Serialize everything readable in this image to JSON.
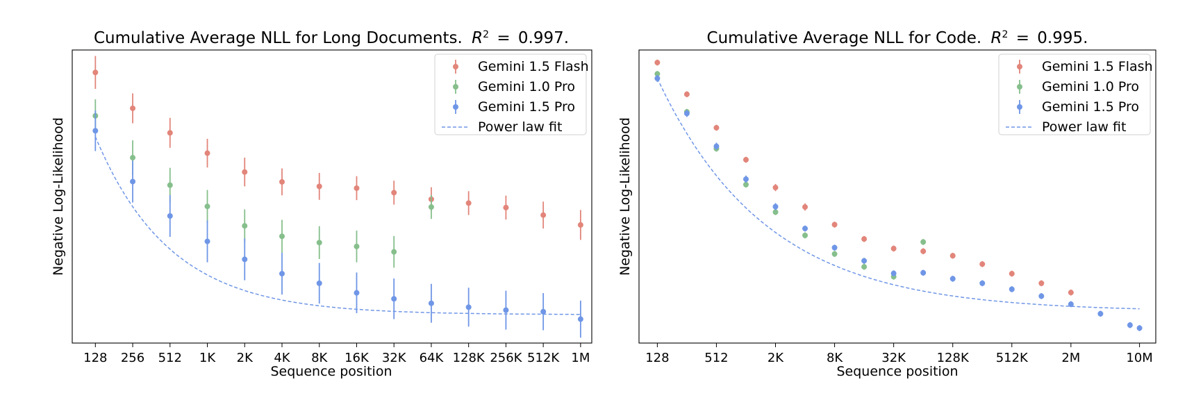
{
  "chart_data": [
    {
      "type": "scatter",
      "title": "Cumulative Average NLL for Long Documents. R² = 0.997.",
      "title_main": "Cumulative Average NLL for Long Documents.",
      "title_r2": "0.997.",
      "xlabel": "Sequence position",
      "ylabel": "Negative Log-Likelihood",
      "x_scale": "log2",
      "x_ticks": [
        "128",
        "256",
        "512",
        "1K",
        "2K",
        "4K",
        "8K",
        "16K",
        "32K",
        "64K",
        "128K",
        "256K",
        "512K",
        "1M"
      ],
      "y_tick_labels": false,
      "legend_position": "top-right",
      "grid": false,
      "series": [
        {
          "name": "Gemini 1.5 Flash",
          "color": "#e2857a",
          "x": [
            "128",
            "256",
            "512",
            "1K",
            "2K",
            "4K",
            "8K",
            "16K",
            "32K",
            "64K",
            "128K",
            "256K",
            "512K",
            "1M"
          ],
          "y": [
            0.905,
            0.785,
            0.703,
            0.635,
            0.572,
            0.539,
            0.524,
            0.518,
            0.503,
            0.481,
            0.468,
            0.453,
            0.428,
            0.395
          ],
          "err": [
            0.055,
            0.05,
            0.05,
            0.048,
            0.048,
            0.045,
            0.045,
            0.04,
            0.04,
            0.04,
            0.04,
            0.04,
            0.045,
            0.05
          ]
        },
        {
          "name": "Gemini 1.0 Pro",
          "color": "#86bf8c",
          "x": [
            "128",
            "256",
            "512",
            "1K",
            "2K",
            "4K",
            "8K",
            "16K",
            "32K",
            "64K"
          ],
          "y": [
            0.76,
            0.62,
            0.528,
            0.457,
            0.392,
            0.357,
            0.336,
            0.323,
            0.305,
            0.455
          ],
          "err": [
            0.055,
            0.058,
            0.058,
            0.055,
            0.055,
            0.055,
            0.055,
            0.053,
            0.053,
            0.04
          ]
        },
        {
          "name": "Gemini 1.5 Pro",
          "color": "#6f96e6",
          "x": [
            "128",
            "256",
            "512",
            "1K",
            "2K",
            "4K",
            "8K",
            "16K",
            "32K",
            "64K",
            "128K",
            "256K",
            "512K",
            "1M"
          ],
          "y": [
            0.71,
            0.54,
            0.425,
            0.34,
            0.28,
            0.232,
            0.2,
            0.168,
            0.148,
            0.133,
            0.12,
            0.11,
            0.105,
            0.08
          ],
          "err": [
            0.068,
            0.07,
            0.07,
            0.07,
            0.07,
            0.07,
            0.068,
            0.068,
            0.068,
            0.065,
            0.065,
            0.065,
            0.062,
            0.062
          ]
        },
        {
          "name": "Power law fit",
          "color": "#6f96e6",
          "style": "dashed",
          "fit": {
            "a": 0.595,
            "b": 0.5,
            "c": 0.095
          }
        }
      ]
    },
    {
      "type": "scatter",
      "title": "Cumulative Average NLL for Code. R² = 0.995.",
      "title_main": "Cumulative Average NLL for Code.",
      "title_r2": "0.995.",
      "xlabel": "Sequence position",
      "ylabel": "Negative Log-Likelihood",
      "x_scale": "log2",
      "x_ticks": [
        "128",
        "512",
        "2K",
        "8K",
        "32K",
        "128K",
        "512K",
        "2M",
        "10M"
      ],
      "y_tick_labels": false,
      "legend_position": "top-right",
      "grid": false,
      "series": [
        {
          "name": "Gemini 1.5 Flash",
          "color": "#e2857a",
          "x": [
            128,
            256,
            512,
            1024,
            2048,
            4096,
            8192,
            16384,
            32768,
            65536,
            131072,
            262144,
            524288,
            1048576,
            2097152
          ],
          "y": [
            0.938,
            0.832,
            0.72,
            0.613,
            0.52,
            0.455,
            0.396,
            0.348,
            0.316,
            0.307,
            0.292,
            0.264,
            0.232,
            0.2,
            0.169
          ],
          "err": [
            0.01,
            0.01,
            0.01,
            0.01,
            0.012,
            0.012,
            0.01,
            0.01,
            0.01,
            0.01,
            0.01,
            0.01,
            0.01,
            0.01,
            0.01
          ]
        },
        {
          "name": "Gemini 1.0 Pro",
          "color": "#86bf8c",
          "x": [
            128,
            256,
            512,
            1024,
            2048,
            4096,
            8192,
            16384,
            32768,
            65536
          ],
          "y": [
            0.9,
            0.773,
            0.65,
            0.53,
            0.438,
            0.36,
            0.298,
            0.255,
            0.222,
            0.338
          ],
          "err": [
            0.01,
            0.01,
            0.01,
            0.01,
            0.01,
            0.01,
            0.01,
            0.01,
            0.01,
            0.01
          ]
        },
        {
          "name": "Gemini 1.5 Pro",
          "color": "#6f96e6",
          "x": [
            128,
            256,
            512,
            1024,
            2048,
            4096,
            8192,
            16384,
            32768,
            65536,
            131072,
            262144,
            524288,
            1048576,
            2097152,
            4194304,
            8388608,
            10485760
          ],
          "y": [
            0.885,
            0.768,
            0.658,
            0.548,
            0.456,
            0.383,
            0.319,
            0.275,
            0.233,
            0.235,
            0.215,
            0.2,
            0.18,
            0.157,
            0.13,
            0.098,
            0.06,
            0.05
          ],
          "err": [
            0.012,
            0.012,
            0.012,
            0.012,
            0.012,
            0.01,
            0.01,
            0.01,
            0.01,
            0.01,
            0.01,
            0.01,
            0.01,
            0.01,
            0.01,
            0.01,
            0.01,
            0.01
          ]
        },
        {
          "name": "Power law fit",
          "color": "#6f96e6",
          "style": "dashed",
          "fit": {
            "a": 0.78,
            "b": 0.27,
            "c": 0.105
          }
        }
      ]
    }
  ]
}
